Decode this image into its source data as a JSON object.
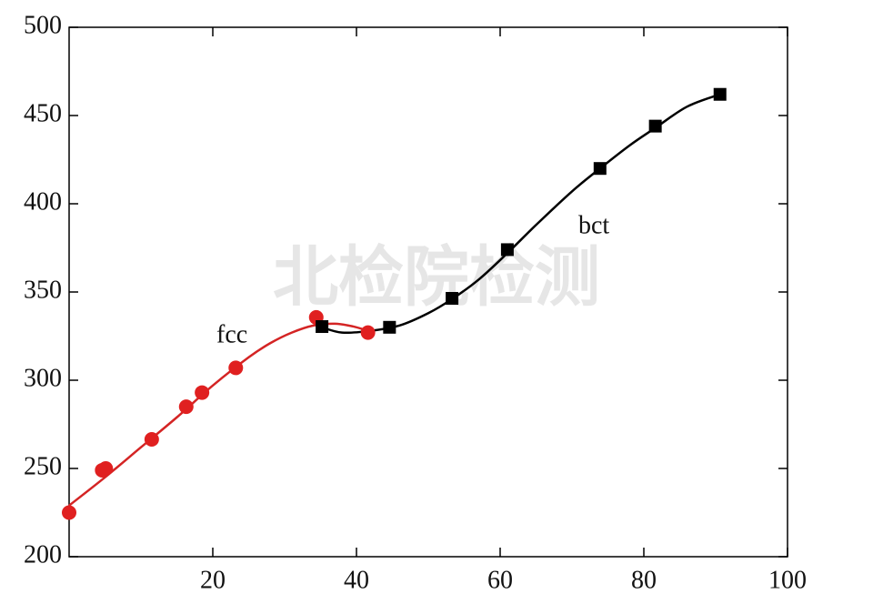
{
  "chart_data": {
    "type": "scatter",
    "watermark": "北检院检测",
    "xlim": [
      0,
      100
    ],
    "ylim": [
      200,
      500
    ],
    "xticks": [
      20,
      40,
      60,
      80,
      100
    ],
    "yticks": [
      200,
      250,
      300,
      350,
      400,
      450,
      500
    ],
    "annotations": [
      "fcc",
      "bct"
    ],
    "series": [
      {
        "style": "line",
        "color": "#d42424",
        "x": [
          0,
          5,
          10,
          15,
          20,
          25,
          28,
          31,
          34,
          37,
          39.5,
          41.6
        ],
        "values": [
          229,
          245,
          262,
          279,
          297,
          313,
          321,
          327,
          331,
          332,
          330.5,
          328
        ]
      },
      {
        "style": "line",
        "color": "#000000",
        "x": [
          35.2,
          38,
          42,
          46,
          50,
          53.3,
          57,
          61,
          65,
          70,
          73.9,
          78,
          81.6,
          86,
          90.6
        ],
        "values": [
          330,
          327,
          328,
          331,
          338,
          346,
          357,
          372,
          388,
          407,
          420,
          433,
          443,
          455,
          462
        ]
      },
      {
        "style": "circle",
        "color": "#e02020",
        "x": [
          0,
          4.6,
          5.1,
          11.5,
          16.3,
          18.5,
          23.2,
          34.4,
          41.6
        ],
        "values": [
          225,
          249,
          250,
          266.5,
          285,
          293,
          307,
          335.6,
          327
        ]
      },
      {
        "style": "square",
        "color": "#000000",
        "x": [
          35.2,
          44.6,
          53.3,
          61,
          73.9,
          81.6,
          90.6
        ],
        "values": [
          330.4,
          330,
          346.4,
          374,
          420,
          444,
          462
        ]
      }
    ]
  }
}
